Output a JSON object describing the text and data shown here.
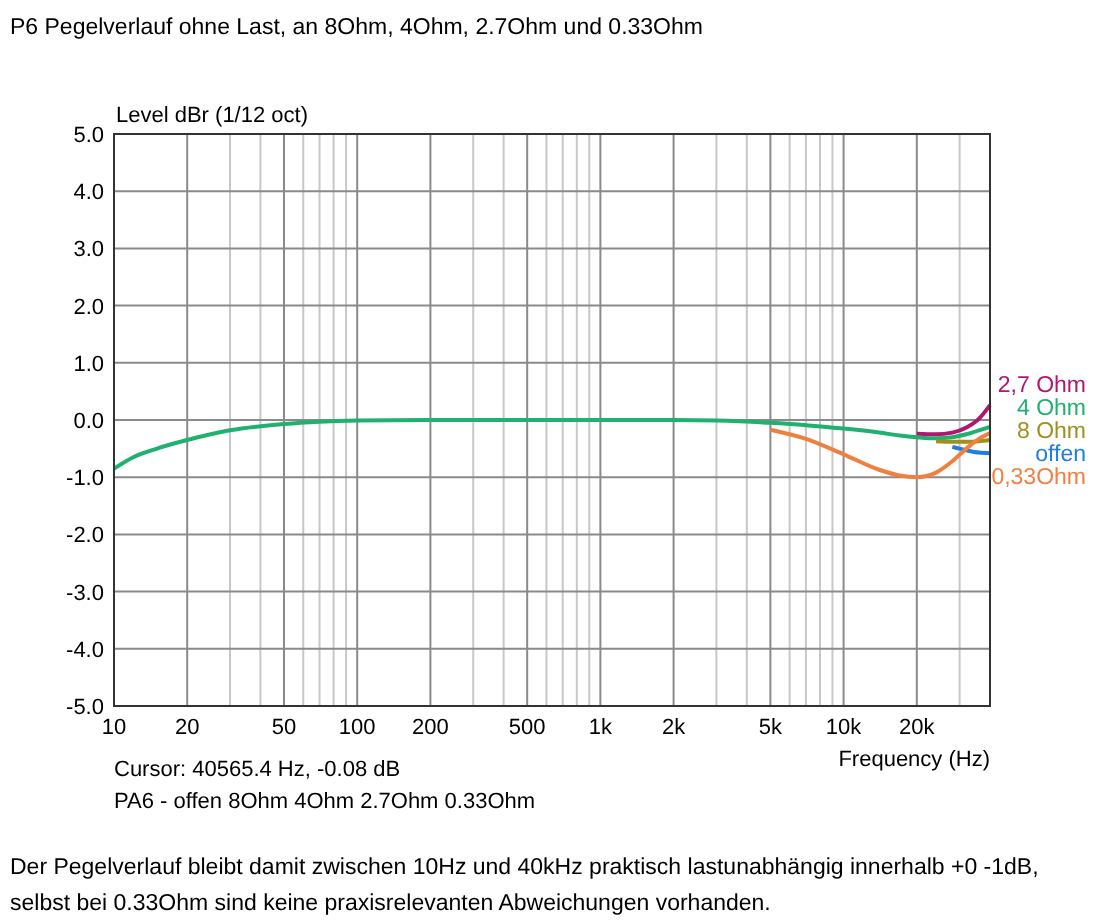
{
  "chart_data": {
    "type": "line",
    "title": "P6 Pegelverlauf ohne Last, an 8Ohm, 4Ohm, 2.7Ohm und 0.33Ohm",
    "ylabel": "Level dBr (1/12 oct)",
    "xlabel": "Frequency (Hz)",
    "annotations": [
      "Cursor: 40565.4 Hz, -0.08 dB",
      "PA6 - offen  8Ohm  4Ohm  2.7Ohm  0.33Ohm",
      "Der Pegelverlauf bleibt damit zwischen 10Hz und 40kHz praktisch lastunabhängig innerhalb +0 -1dB,",
      "selbst bei 0.33Ohm sind keine praxisrelevanten Abweichungen vorhanden."
    ],
    "log": "x",
    "grid": true,
    "line_style": "solid",
    "marker": "none",
    "xlim": [
      10,
      40000
    ],
    "ylim": [
      -5,
      5
    ],
    "xticks": [
      10,
      20,
      {
        "value": 30,
        "label": null
      },
      {
        "value": 40,
        "label": null
      },
      50,
      {
        "value": 60,
        "label": null
      },
      {
        "value": 70,
        "label": null
      },
      {
        "value": 80,
        "label": null
      },
      {
        "value": 90,
        "label": null
      },
      100,
      200,
      {
        "value": 300,
        "label": null
      },
      {
        "value": 400,
        "label": null
      },
      500,
      {
        "value": 600,
        "label": null
      },
      {
        "value": 700,
        "label": null
      },
      {
        "value": 800,
        "label": null
      },
      {
        "value": 900,
        "label": null
      },
      {
        "value": 1000,
        "label": "1k"
      },
      {
        "value": 2000,
        "label": "2k"
      },
      {
        "value": 3000,
        "label": null
      },
      {
        "value": 4000,
        "label": null
      },
      {
        "value": 5000,
        "label": "5k"
      },
      {
        "value": 6000,
        "label": null
      },
      {
        "value": 7000,
        "label": null
      },
      {
        "value": 8000,
        "label": null
      },
      {
        "value": 9000,
        "label": null
      },
      {
        "value": 10000,
        "label": "10k"
      },
      {
        "value": 20000,
        "label": "20k"
      },
      {
        "value": 30000,
        "label": null
      }
    ],
    "yticks": [
      {
        "value": -5,
        "label": "-5.0"
      },
      {
        "value": -4,
        "label": "-4.0"
      },
      {
        "value": -3,
        "label": "-3.0"
      },
      {
        "value": -2,
        "label": "-2.0"
      },
      {
        "value": -1,
        "label": "-1.0"
      },
      {
        "value": 0,
        "label": "0.0"
      },
      {
        "value": 1,
        "label": "1.0"
      },
      {
        "value": 2,
        "label": "2.0"
      },
      {
        "value": 3,
        "label": "3.0"
      },
      {
        "value": 4,
        "label": "4.0"
      },
      {
        "value": 5,
        "label": "5.0"
      }
    ],
    "x": [
      10,
      12,
      15,
      20,
      30,
      50,
      70,
      100,
      200,
      500,
      1000,
      2000,
      3000,
      5000,
      7000,
      10000,
      14000,
      17000,
      20000,
      24000,
      28000,
      32000,
      36000,
      40000
    ],
    "series": [
      {
        "name": "2,7 Ohm",
        "color": "#b0186e",
        "values": [
          null,
          null,
          null,
          null,
          null,
          null,
          null,
          null,
          null,
          null,
          null,
          null,
          null,
          null,
          null,
          null,
          null,
          null,
          -0.24,
          -0.25,
          -0.22,
          -0.13,
          0.02,
          0.26
        ]
      },
      {
        "name": "4 Ohm",
        "color": "#20b070",
        "values": [
          -0.85,
          -0.65,
          -0.5,
          -0.35,
          -0.18,
          -0.07,
          -0.03,
          -0.01,
          0,
          0,
          0,
          0,
          -0.01,
          -0.05,
          -0.09,
          -0.15,
          -0.22,
          -0.27,
          -0.3,
          -0.32,
          -0.3,
          -0.25,
          -0.18,
          -0.12
        ]
      },
      {
        "name": "8 Ohm",
        "color": "#a09020",
        "values": [
          null,
          null,
          null,
          null,
          null,
          null,
          null,
          null,
          null,
          null,
          null,
          null,
          null,
          null,
          null,
          null,
          null,
          null,
          null,
          -0.37,
          -0.38,
          -0.38,
          -0.37,
          -0.35
        ]
      },
      {
        "name": "offen",
        "color": "#1e7fe0",
        "values": [
          null,
          null,
          null,
          null,
          null,
          null,
          null,
          null,
          null,
          null,
          null,
          null,
          null,
          null,
          null,
          null,
          null,
          null,
          null,
          null,
          -0.47,
          -0.53,
          -0.57,
          -0.58
        ]
      },
      {
        "name": "0,33Ohm",
        "color": "#f08040",
        "values": [
          null,
          null,
          null,
          null,
          null,
          null,
          null,
          null,
          null,
          null,
          null,
          null,
          null,
          -0.17,
          -0.33,
          -0.6,
          -0.87,
          -0.97,
          -1.0,
          -0.92,
          -0.72,
          -0.5,
          -0.33,
          -0.23
        ]
      }
    ]
  }
}
